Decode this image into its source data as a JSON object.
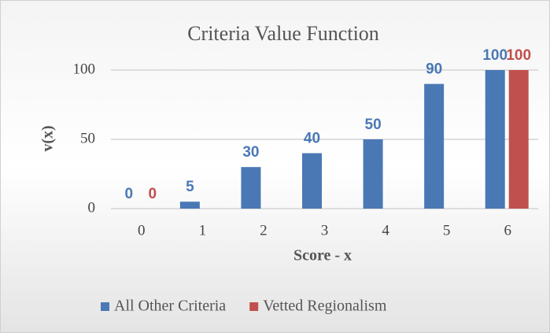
{
  "chart_data": {
    "type": "bar",
    "title": "Criteria Value Function",
    "x_label": "Score - x",
    "y_label": "v(x)",
    "categories": [
      "0",
      "1",
      "2",
      "3",
      "4",
      "5",
      "6"
    ],
    "series": [
      {
        "name": "All Other Criteria",
        "color": "#4a78b5",
        "values": [
          0,
          5,
          30,
          40,
          50,
          90,
          100
        ]
      },
      {
        "name": "Vetted Regionalism",
        "color": "#c0504d",
        "values": [
          0,
          null,
          null,
          null,
          null,
          null,
          100
        ]
      }
    ],
    "ylim": [
      0,
      100
    ],
    "yticks": [
      0,
      50,
      100
    ],
    "grid": true,
    "legend": "bottom"
  }
}
